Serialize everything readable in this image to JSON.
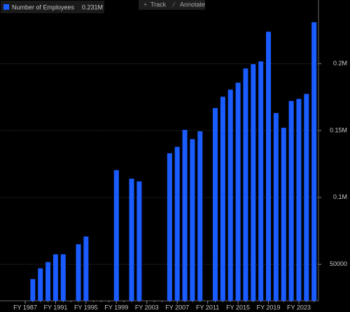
{
  "chart_data": {
    "type": "bar",
    "series": [
      {
        "name": "Number of Employees",
        "color": "#1a5cff",
        "latest_label": "0.231M",
        "values": [
          null,
          39000,
          47000,
          51700,
          57500,
          57500,
          null,
          65000,
          70800,
          null,
          null,
          null,
          120400,
          null,
          114000,
          112000,
          null,
          null,
          null,
          133000,
          137800,
          150500,
          143600,
          149400,
          null,
          166800,
          175300,
          180600,
          185800,
          196400,
          199600,
          201700,
          223900,
          163100,
          152100,
          172100,
          173700,
          177400,
          231000
        ]
      }
    ],
    "categories": [
      "FY 1987",
      null,
      null,
      null,
      "FY 1991",
      null,
      null,
      null,
      "FY 1995",
      null,
      null,
      null,
      "FY 1999",
      null,
      null,
      null,
      "FY 2003",
      null,
      null,
      null,
      "FY 2007",
      null,
      null,
      null,
      "FY 2011",
      null,
      null,
      null,
      "FY 2015",
      null,
      null,
      null,
      "FY 2019",
      null,
      null,
      null,
      "FY 2023",
      null,
      null
    ],
    "ylim": [
      22700,
      247600
    ],
    "yticks": [
      50000,
      {
        "value": 100000,
        "label": "0.1M"
      },
      {
        "value": 150000,
        "label": "0.15M"
      },
      {
        "value": 200000,
        "label": "0.2M"
      }
    ],
    "grid": true,
    "toolbar": [
      "Track",
      "Annotate"
    ]
  }
}
